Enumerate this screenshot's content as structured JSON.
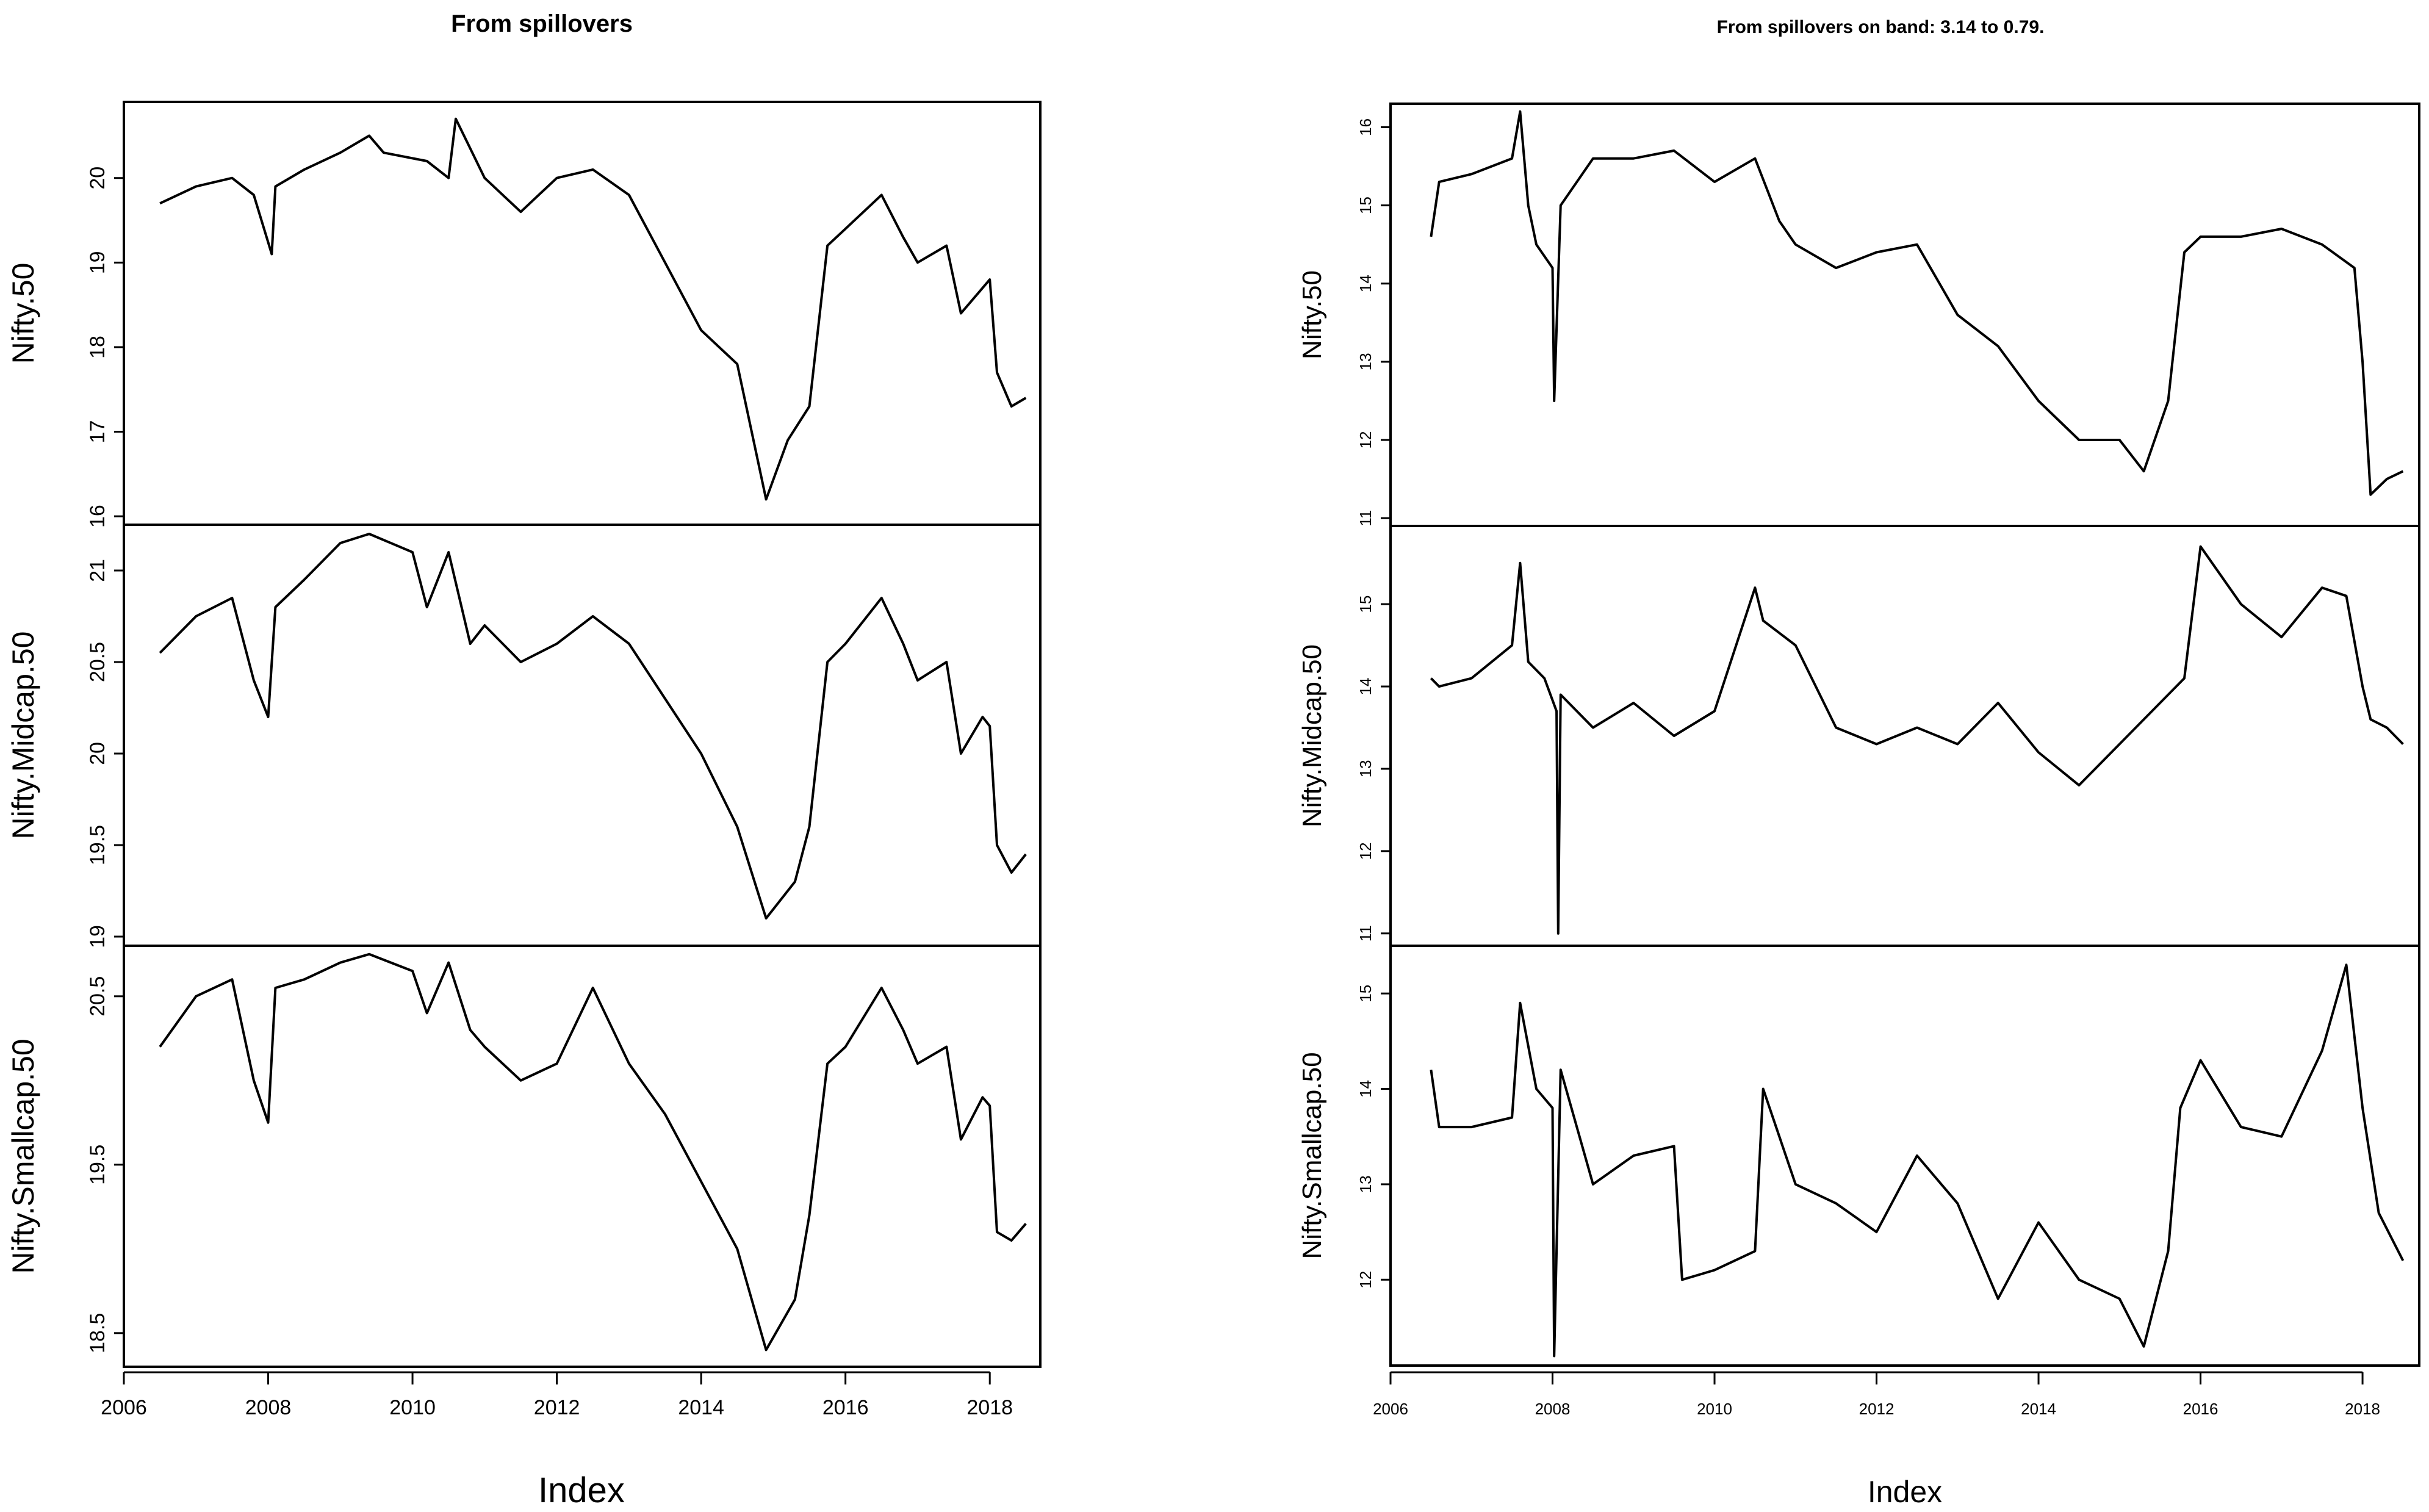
{
  "chart_data": [
    {
      "type": "line",
      "title": "From spillovers",
      "xlabel": "Index",
      "xlim": [
        2006,
        2018.7
      ],
      "x_ticks": [
        2006,
        2008,
        2010,
        2012,
        2014,
        2016,
        2018
      ],
      "panels": [
        {
          "ylabel": "Nifty.50",
          "ylim": [
            15.9,
            20.9
          ],
          "y_ticks": [
            16,
            17,
            18,
            19,
            20
          ],
          "x": [
            2006.5,
            2007.0,
            2007.5,
            2007.8,
            2008.05,
            2008.1,
            2008.5,
            2009.0,
            2009.4,
            2009.6,
            2010.2,
            2010.5,
            2010.6,
            2011.0,
            2011.5,
            2012.0,
            2012.5,
            2013.0,
            2013.5,
            2014.0,
            2014.5,
            2014.9,
            2015.2,
            2015.5,
            2015.75,
            2016.0,
            2016.5,
            2016.8,
            2017.0,
            2017.4,
            2017.6,
            2017.9,
            2018.0,
            2018.1,
            2018.3,
            2018.5
          ],
          "y": [
            19.7,
            19.9,
            20.0,
            19.8,
            19.1,
            19.9,
            20.1,
            20.3,
            20.5,
            20.3,
            20.2,
            20.0,
            20.7,
            20.0,
            19.6,
            20.0,
            20.1,
            19.8,
            19.0,
            18.2,
            17.8,
            16.2,
            16.9,
            17.3,
            19.2,
            19.4,
            19.8,
            19.3,
            19.0,
            19.2,
            18.4,
            18.7,
            18.8,
            17.7,
            17.3,
            17.4
          ]
        },
        {
          "ylabel": "Nifty.Midcap.50",
          "ylim": [
            18.95,
            21.25
          ],
          "y_ticks": [
            19.0,
            19.5,
            20.0,
            20.5,
            21.0
          ],
          "x": [
            2006.5,
            2007.0,
            2007.5,
            2007.8,
            2008.0,
            2008.1,
            2008.5,
            2009.0,
            2009.4,
            2010.0,
            2010.2,
            2010.5,
            2010.8,
            2011.0,
            2011.5,
            2012.0,
            2012.5,
            2013.0,
            2013.5,
            2014.0,
            2014.5,
            2014.9,
            2015.3,
            2015.5,
            2015.75,
            2016.0,
            2016.5,
            2016.8,
            2017.0,
            2017.4,
            2017.6,
            2017.9,
            2018.0,
            2018.1,
            2018.3,
            2018.5
          ],
          "y": [
            20.55,
            20.75,
            20.85,
            20.4,
            20.2,
            20.8,
            20.95,
            21.15,
            21.2,
            21.1,
            20.8,
            21.1,
            20.6,
            20.7,
            20.5,
            20.6,
            20.75,
            20.6,
            20.3,
            20.0,
            19.6,
            19.1,
            19.3,
            19.6,
            20.5,
            20.6,
            20.85,
            20.6,
            20.4,
            20.5,
            20.0,
            20.2,
            20.15,
            19.5,
            19.35,
            19.45
          ]
        },
        {
          "ylabel": "Nifty.Smallcap.50",
          "ylim": [
            18.3,
            20.8
          ],
          "y_ticks": [
            18.5,
            19.5,
            20.5
          ],
          "x": [
            2006.5,
            2007.0,
            2007.5,
            2007.8,
            2008.0,
            2008.1,
            2008.5,
            2009.0,
            2009.4,
            2010.0,
            2010.2,
            2010.5,
            2010.8,
            2011.0,
            2011.5,
            2012.0,
            2012.5,
            2013.0,
            2013.5,
            2014.0,
            2014.5,
            2014.9,
            2015.3,
            2015.5,
            2015.75,
            2016.0,
            2016.5,
            2016.8,
            2017.0,
            2017.4,
            2017.6,
            2017.9,
            2018.0,
            2018.1,
            2018.3,
            2018.5
          ],
          "y": [
            20.2,
            20.5,
            20.6,
            20.0,
            19.75,
            20.55,
            20.6,
            20.7,
            20.75,
            20.65,
            20.4,
            20.7,
            20.3,
            20.2,
            20.0,
            20.1,
            20.55,
            20.1,
            19.8,
            19.4,
            19.0,
            18.4,
            18.7,
            19.2,
            20.1,
            20.2,
            20.55,
            20.3,
            20.1,
            20.2,
            19.65,
            19.9,
            19.85,
            19.1,
            19.05,
            19.15
          ]
        }
      ]
    },
    {
      "type": "line",
      "title": "From spillovers on band: 3.14 to 0.79.",
      "xlabel": "Index",
      "xlim": [
        2006,
        2018.7
      ],
      "x_ticks": [
        2006,
        2008,
        2010,
        2012,
        2014,
        2016,
        2018
      ],
      "panels": [
        {
          "ylabel": "Nifty.50",
          "ylim": [
            1.09,
            1.63
          ],
          "y_ticks": [
            1.1,
            1.2,
            1.3,
            1.4,
            1.5,
            1.6
          ],
          "y_tick_labels": [
            "11",
            "12",
            "13",
            "14",
            "15",
            "16"
          ],
          "x": [
            2006.5,
            2006.6,
            2007.0,
            2007.5,
            2007.6,
            2007.7,
            2007.8,
            2008.0,
            2008.02,
            2008.1,
            2008.5,
            2009.0,
            2009.5,
            2010.0,
            2010.5,
            2010.8,
            2011.0,
            2011.5,
            2012.0,
            2012.5,
            2013.0,
            2013.5,
            2014.0,
            2014.5,
            2015.0,
            2015.3,
            2015.6,
            2015.8,
            2016.0,
            2016.5,
            2017.0,
            2017.5,
            2017.9,
            2018.0,
            2018.1,
            2018.3,
            2018.5
          ],
          "y": [
            1.46,
            1.53,
            1.54,
            1.56,
            1.62,
            1.5,
            1.45,
            1.42,
            1.25,
            1.5,
            1.56,
            1.56,
            1.57,
            1.53,
            1.56,
            1.48,
            1.45,
            1.42,
            1.44,
            1.45,
            1.36,
            1.32,
            1.25,
            1.2,
            1.2,
            1.16,
            1.25,
            1.44,
            1.46,
            1.46,
            1.47,
            1.45,
            1.42,
            1.3,
            1.13,
            1.15,
            1.16
          ]
        },
        {
          "ylabel": "Nifty.Midcap.50",
          "ylim": [
            1.085,
            1.595
          ],
          "y_ticks": [
            1.1,
            1.2,
            1.3,
            1.4,
            1.5
          ],
          "y_tick_labels": [
            "11",
            "12",
            "13",
            "14",
            "15"
          ],
          "x": [
            2006.5,
            2006.6,
            2007.0,
            2007.5,
            2007.6,
            2007.7,
            2007.9,
            2008.05,
            2008.07,
            2008.1,
            2008.5,
            2009.0,
            2009.5,
            2010.0,
            2010.5,
            2010.6,
            2011.0,
            2011.5,
            2012.0,
            2012.5,
            2013.0,
            2013.5,
            2014.0,
            2014.5,
            2015.0,
            2015.5,
            2015.8,
            2016.0,
            2016.5,
            2017.0,
            2017.5,
            2017.8,
            2018.0,
            2018.1,
            2018.3,
            2018.5
          ],
          "y": [
            1.41,
            1.4,
            1.41,
            1.45,
            1.55,
            1.43,
            1.41,
            1.37,
            1.1,
            1.39,
            1.35,
            1.38,
            1.34,
            1.37,
            1.52,
            1.48,
            1.45,
            1.35,
            1.33,
            1.35,
            1.33,
            1.38,
            1.32,
            1.28,
            1.33,
            1.38,
            1.41,
            1.57,
            1.5,
            1.46,
            1.52,
            1.51,
            1.4,
            1.36,
            1.35,
            1.33
          ]
        },
        {
          "ylabel": "Nifty.Smallcap.50",
          "ylim": [
            1.11,
            1.55
          ],
          "y_ticks": [
            1.2,
            1.3,
            1.4,
            1.5
          ],
          "y_tick_labels": [
            "12",
            "13",
            "14",
            "15"
          ],
          "x": [
            2006.5,
            2006.6,
            2007.0,
            2007.5,
            2007.6,
            2007.8,
            2008.0,
            2008.02,
            2008.1,
            2008.5,
            2009.0,
            2009.5,
            2009.6,
            2010.0,
            2010.5,
            2010.6,
            2011.0,
            2011.5,
            2012.0,
            2012.5,
            2013.0,
            2013.5,
            2014.0,
            2014.5,
            2015.0,
            2015.3,
            2015.6,
            2015.75,
            2016.0,
            2016.5,
            2017.0,
            2017.5,
            2017.8,
            2018.0,
            2018.2,
            2018.5
          ],
          "y": [
            1.42,
            1.36,
            1.36,
            1.37,
            1.49,
            1.4,
            1.38,
            1.12,
            1.42,
            1.3,
            1.33,
            1.34,
            1.2,
            1.21,
            1.23,
            1.4,
            1.3,
            1.28,
            1.25,
            1.33,
            1.28,
            1.18,
            1.26,
            1.2,
            1.18,
            1.13,
            1.23,
            1.38,
            1.43,
            1.36,
            1.35,
            1.44,
            1.53,
            1.38,
            1.27,
            1.22
          ]
        }
      ]
    }
  ]
}
